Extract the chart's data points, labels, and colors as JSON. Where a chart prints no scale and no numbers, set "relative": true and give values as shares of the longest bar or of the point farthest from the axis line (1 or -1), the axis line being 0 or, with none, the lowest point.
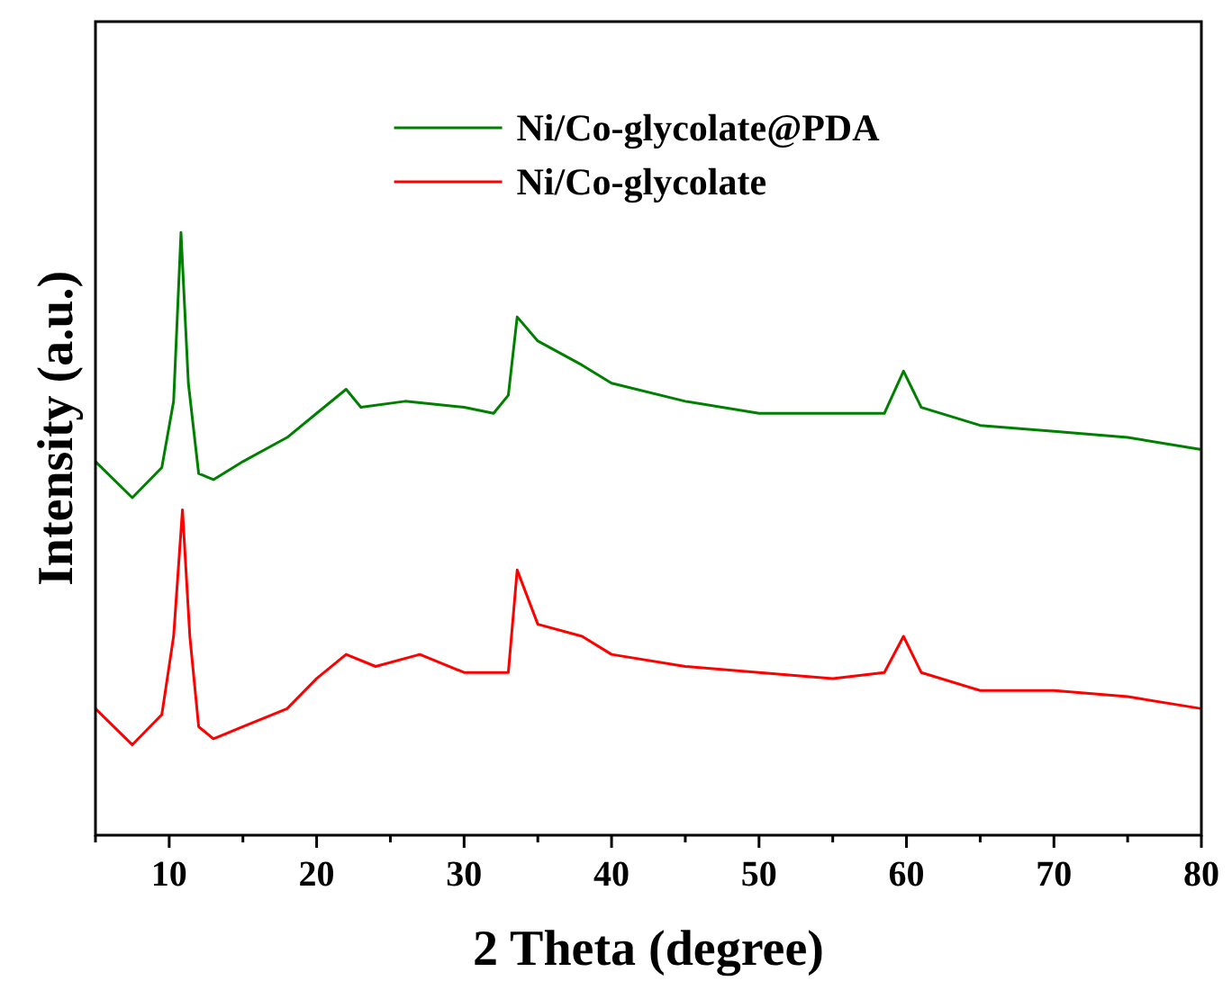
{
  "chart_data": {
    "type": "line",
    "xlabel": "2 Theta (degree)",
    "ylabel": "Intensity (a.u.)",
    "relative": true,
    "xlim": [
      5,
      80
    ],
    "xticks": [
      {
        "value": 5,
        "label": null
      },
      10,
      {
        "value": 15,
        "label": null
      },
      20,
      {
        "value": 25,
        "label": null
      },
      30,
      {
        "value": 35,
        "label": null
      },
      40,
      {
        "value": 45,
        "label": null
      },
      50,
      {
        "value": 55,
        "label": null
      },
      60,
      {
        "value": 65,
        "label": null
      },
      70,
      {
        "value": 75,
        "label": null
      },
      80
    ],
    "legend": "top",
    "grid": false,
    "marker": "none",
    "line_style": "solid",
    "series": [
      {
        "name": "Ni/Co-glycolate@PDA",
        "color": "#008000",
        "x": [
          5,
          7.5,
          9.5,
          10.3,
          10.8,
          11.3,
          12,
          13,
          15,
          18,
          20,
          22,
          23,
          26,
          30,
          32,
          33,
          33.6,
          35,
          38,
          40,
          45,
          50,
          55,
          58.5,
          59.8,
          61,
          65,
          70,
          75,
          80
        ],
        "values": [
          0.62,
          0.56,
          0.61,
          0.72,
          1.0,
          0.75,
          0.6,
          0.59,
          0.62,
          0.66,
          0.7,
          0.74,
          0.71,
          0.72,
          0.71,
          0.7,
          0.73,
          0.86,
          0.82,
          0.78,
          0.75,
          0.72,
          0.7,
          0.7,
          0.7,
          0.77,
          0.71,
          0.68,
          0.67,
          0.66,
          0.64
        ]
      },
      {
        "name": "Ni/Co-glycolate",
        "color": "#ff0000",
        "x": [
          5,
          7.5,
          9.5,
          10.3,
          10.9,
          11.4,
          12,
          13,
          15,
          18,
          20,
          22,
          24,
          27,
          30,
          33,
          33.6,
          35,
          38,
          40,
          45,
          50,
          55,
          58.5,
          59.8,
          61,
          65,
          70,
          75,
          80
        ],
        "values": [
          0.21,
          0.15,
          0.2,
          0.33,
          0.54,
          0.33,
          0.18,
          0.16,
          0.18,
          0.21,
          0.26,
          0.3,
          0.28,
          0.3,
          0.27,
          0.27,
          0.44,
          0.35,
          0.33,
          0.3,
          0.28,
          0.27,
          0.26,
          0.27,
          0.33,
          0.27,
          0.24,
          0.24,
          0.23,
          0.21
        ]
      }
    ]
  }
}
